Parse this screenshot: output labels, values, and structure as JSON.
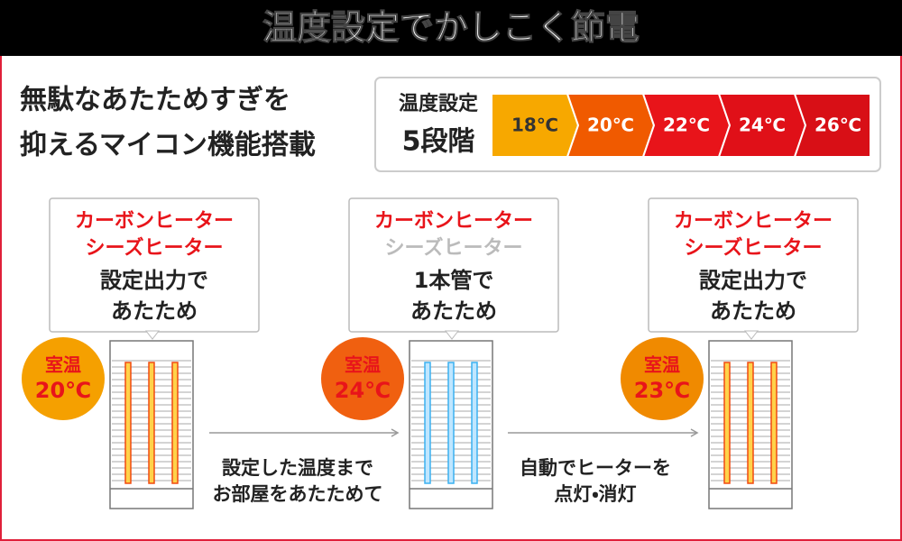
{
  "header": {
    "title": "温度設定でかしこく節電"
  },
  "intro": {
    "lines": [
      "無駄なあたためすぎを",
      "抑えるマイコン機能搭載"
    ]
  },
  "levels": {
    "label": "温度設定",
    "count": "5段階",
    "steps": [
      "18℃",
      "20℃",
      "22℃",
      "24℃",
      "26℃"
    ]
  },
  "panels": [
    {
      "lines": [
        "カーボンヒーター",
        "シーズヒーター",
        "設定出力で",
        "あたため"
      ],
      "badge": [
        "室温",
        "20℃"
      ]
    },
    {
      "lines": [
        "カーボンヒーター",
        "シーズヒーター",
        "1本管で",
        "あたため"
      ],
      "badge": [
        "室温",
        "24℃"
      ]
    },
    {
      "lines": [
        "カーボンヒーター",
        "シーズヒーター",
        "設定出力で",
        "あたため"
      ],
      "badge": [
        "室温",
        "23℃"
      ]
    }
  ],
  "captions": [
    [
      "設定した温度まで",
      "お部屋をあたためて"
    ],
    [
      "自動でヒーターを",
      "点灯・消灯"
    ]
  ]
}
